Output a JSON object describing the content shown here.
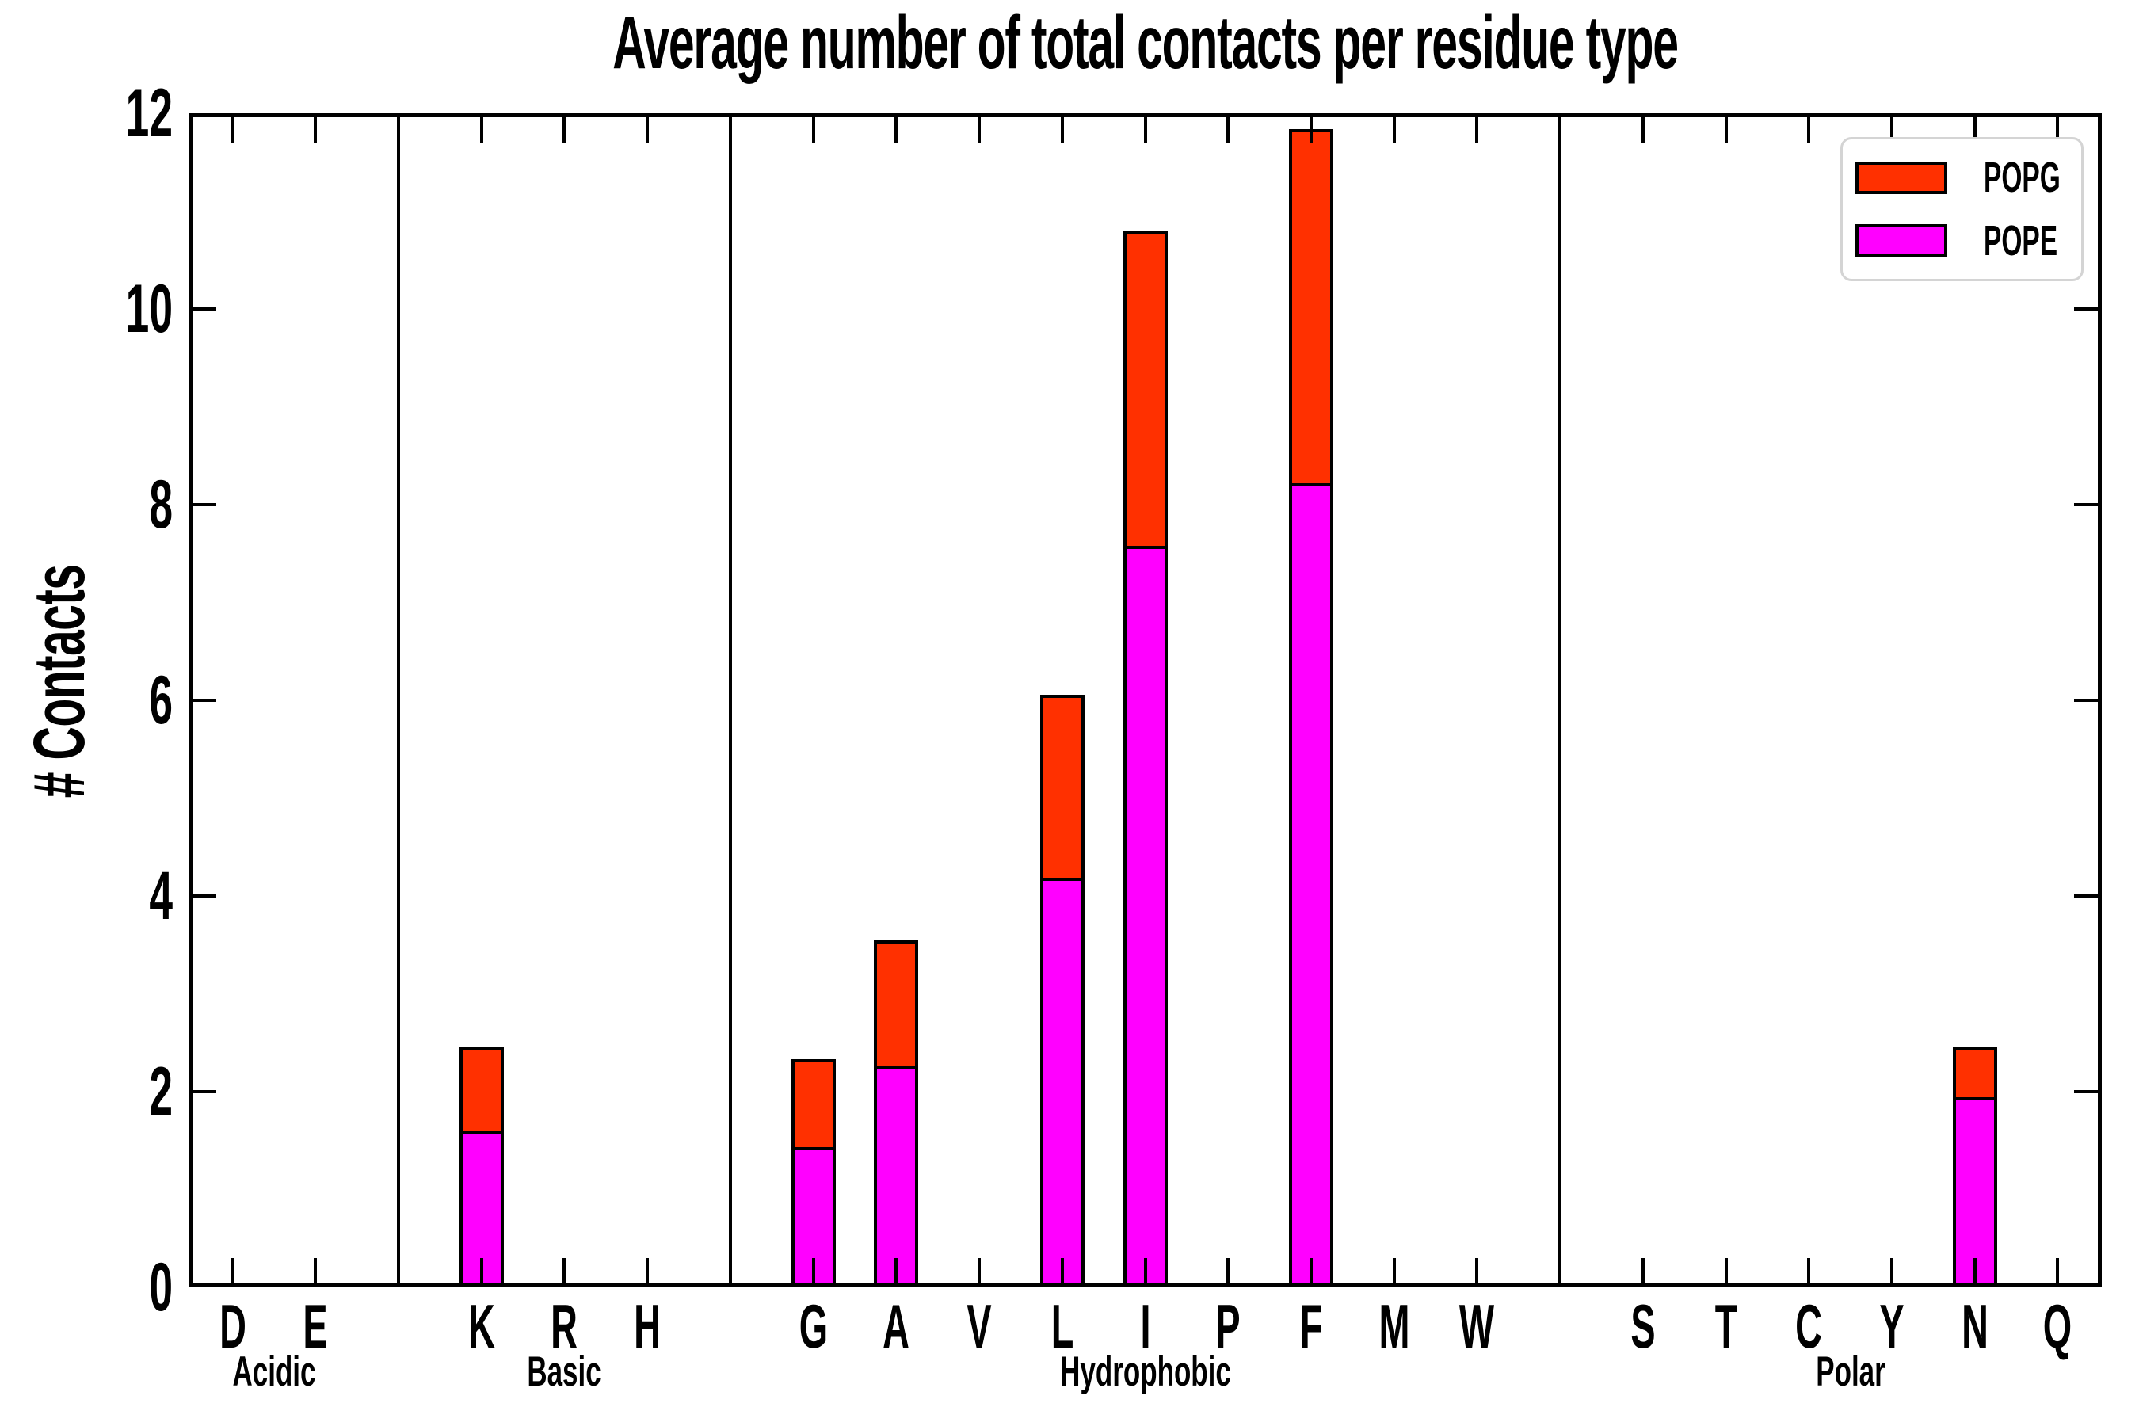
{
  "chart_data": {
    "type": "bar",
    "stacked": true,
    "title": "Average number of total contacts per residue type",
    "ylabel": "# Contacts",
    "xlabel": "",
    "ylim": [
      0,
      12
    ],
    "yticks": [
      0,
      2,
      4,
      6,
      8,
      10,
      12
    ],
    "xlim": [
      -0.53,
      22.53
    ],
    "categories": [
      "D",
      "E",
      "K",
      "R",
      "H",
      "G",
      "A",
      "V",
      "L",
      "I",
      "P",
      "F",
      "M",
      "W",
      "S",
      "T",
      "C",
      "Y",
      "N",
      "Q"
    ],
    "positions": [
      0,
      1,
      3,
      4,
      5,
      7,
      8,
      9,
      10,
      11,
      12,
      13,
      14,
      15,
      17,
      18,
      19,
      20,
      21,
      22
    ],
    "group_separators": [
      2,
      6,
      16
    ],
    "groups": [
      {
        "label": "Acidic",
        "members": [
          "D",
          "E"
        ],
        "center_pos": 0.5
      },
      {
        "label": "Basic",
        "members": [
          "K",
          "R",
          "H"
        ],
        "center_pos": 4
      },
      {
        "label": "Hydrophobic",
        "members": [
          "G",
          "A",
          "V",
          "L",
          "I",
          "P",
          "F",
          "M",
          "W"
        ],
        "center_pos": 11
      },
      {
        "label": "Polar",
        "members": [
          "S",
          "T",
          "C",
          "Y",
          "N",
          "Q"
        ],
        "center_pos": 19.5
      }
    ],
    "series": [
      {
        "name": "POPE",
        "color": "#FF00FF",
        "values": [
          0,
          0,
          1.6,
          0,
          0,
          1.43,
          2.27,
          0,
          4.19,
          7.58,
          0,
          8.22,
          0,
          0,
          0,
          0,
          0,
          0,
          1.94,
          0
        ]
      },
      {
        "name": "POPG",
        "color": "#FF3000",
        "values": [
          0,
          0,
          0.85,
          0,
          0,
          0.9,
          1.28,
          0,
          1.87,
          3.22,
          0,
          3.62,
          0,
          0,
          0,
          0,
          0,
          0,
          0.51,
          0
        ]
      }
    ],
    "legend": {
      "position": "upper right",
      "entries": [
        {
          "label": "POPG",
          "color": "#FF3000"
        },
        {
          "label": "POPE",
          "color": "#FF00FF"
        }
      ]
    },
    "axis_color": "#000000",
    "grid": false
  }
}
